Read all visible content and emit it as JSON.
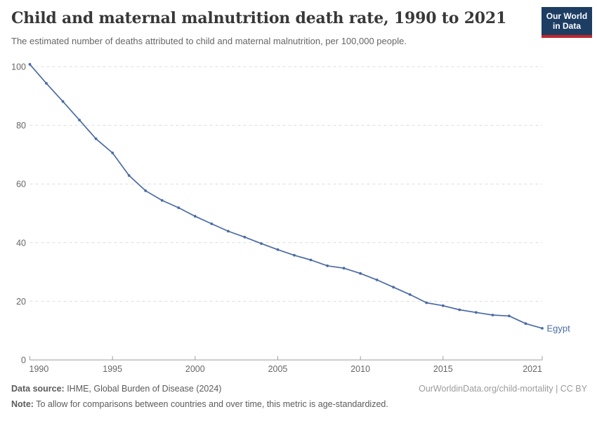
{
  "header": {
    "title": "Child and maternal malnutrition death rate, 1990 to 2021",
    "subtitle": "The estimated number of deaths attributed to child and maternal malnutrition, per 100,000 people."
  },
  "logo": {
    "line1": "Our World",
    "line2": "in Data",
    "bg_color": "#1d3d63",
    "accent_color": "#c4262e"
  },
  "chart_data": {
    "type": "line",
    "title": "Child and maternal malnutrition death rate, 1990 to 2021",
    "ylabel": "",
    "xlabel": "",
    "x": [
      1990,
      1991,
      1992,
      1993,
      1994,
      1995,
      1996,
      1997,
      1998,
      1999,
      2000,
      2001,
      2002,
      2003,
      2004,
      2005,
      2006,
      2007,
      2008,
      2009,
      2010,
      2011,
      2012,
      2013,
      2014,
      2015,
      2016,
      2017,
      2018,
      2019,
      2020,
      2021
    ],
    "series": [
      {
        "name": "Egypt",
        "values": [
          100.8,
          94.3,
          88.1,
          81.8,
          75.4,
          70.6,
          62.9,
          57.7,
          54.4,
          51.9,
          49.0,
          46.4,
          43.9,
          41.9,
          39.7,
          37.6,
          35.7,
          34.1,
          32.1,
          31.3,
          29.5,
          27.3,
          24.8,
          22.3,
          19.5,
          18.5,
          17.1,
          16.2,
          15.3,
          15.0,
          12.4,
          10.8
        ]
      }
    ],
    "xlim": [
      1990,
      2021
    ],
    "ylim": [
      0,
      100
    ],
    "xticks": [
      1990,
      1995,
      2000,
      2005,
      2010,
      2015,
      2021
    ],
    "yticks": [
      0,
      20,
      40,
      60,
      80,
      100
    ],
    "grid": "horizontal-dashed",
    "legend_position": "end-of-line-label",
    "line_color": "#4a6ba5",
    "grid_color": "#dcdcdc",
    "axis_color": "#9e9e9e",
    "tick_label_color": "#666666"
  },
  "footer": {
    "source_label": "Data source:",
    "source_text": " IHME, Global Burden of Disease (2024)",
    "note_label": "Note:",
    "note_text": " To allow for comparisons between countries and over time, this metric is age-standardized.",
    "link": "OurWorldinData.org/child-mortality | CC BY"
  }
}
